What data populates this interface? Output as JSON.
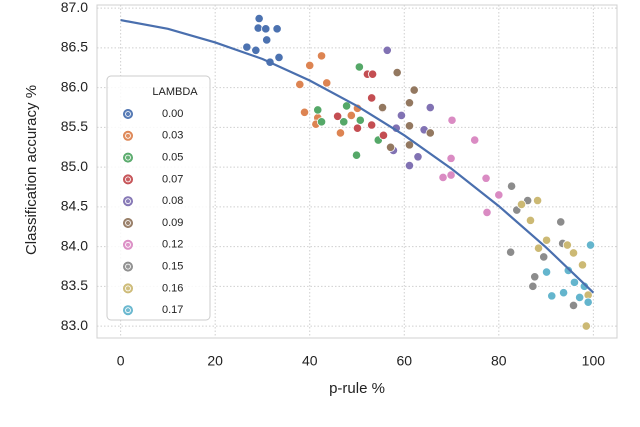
{
  "chart_data": {
    "type": "scatter",
    "xlabel": "p-rule %",
    "ylabel": "Classification accuracy %",
    "xlim": [
      -5,
      105
    ],
    "ylim": [
      82.85,
      87.04
    ],
    "xticks": [
      0,
      20,
      40,
      60,
      80,
      100
    ],
    "yticks": [
      {
        "value": 83,
        "label": "83.0"
      },
      83.5,
      {
        "value": 84,
        "label": "84.0"
      },
      84.5,
      {
        "value": 85,
        "label": "85.0"
      },
      85.5,
      {
        "value": 86,
        "label": "86.0"
      },
      86.5,
      {
        "value": 87,
        "label": "87.0"
      }
    ],
    "grid": true,
    "legend_title": "LAMBDA",
    "legend_position": "lower left",
    "series": [
      {
        "name": "0.00",
        "color": "#4c72b0",
        "x": [
          29.3,
          29.1,
          30.7,
          33.1,
          30.9,
          28.6,
          26.7,
          33.5,
          31.6
        ],
        "values": [
          86.87,
          86.75,
          86.74,
          86.74,
          86.6,
          86.47,
          86.51,
          86.38,
          86.32
        ]
      },
      {
        "name": "0.03",
        "color": "#dd8452",
        "x": [
          42.5,
          40,
          37.9,
          43.6,
          38.9,
          41.7,
          41.3,
          46.5,
          50.1,
          48.8
        ],
        "values": [
          86.4,
          86.28,
          86.04,
          86.06,
          85.69,
          85.62,
          85.54,
          85.43,
          85.74,
          85.65
        ]
      },
      {
        "name": "0.05",
        "color": "#55a868",
        "x": [
          50.5,
          47.8,
          41.7,
          47.2,
          42.5,
          50.7,
          54.5,
          49.9
        ],
        "values": [
          86.26,
          85.77,
          85.72,
          85.57,
          85.57,
          85.59,
          85.34,
          85.15
        ]
      },
      {
        "name": "0.07",
        "color": "#c44e52",
        "x": [
          52.2,
          53.3,
          53.1,
          45.9,
          53.1,
          55.4,
          50.1,
          55.6
        ],
        "values": [
          86.17,
          86.17,
          85.87,
          85.64,
          85.53,
          85.74,
          85.49,
          85.4
        ]
      },
      {
        "name": "0.08",
        "color": "#8172b3",
        "x": [
          56.4,
          59.4,
          65.5,
          57.7,
          61.1,
          62.9,
          64.2,
          58.3
        ],
        "values": [
          86.47,
          85.65,
          85.75,
          85.21,
          85.02,
          85.13,
          85.47,
          85.49
        ]
      },
      {
        "name": "0.09",
        "color": "#937860",
        "x": [
          58.5,
          62.1,
          61.1,
          55.4,
          61.1,
          65.5,
          57.1,
          61.1
        ],
        "values": [
          86.19,
          85.97,
          85.81,
          85.75,
          85.52,
          85.43,
          85.25,
          85.28
        ]
      },
      {
        "name": "0.12",
        "color": "#da8bc3",
        "x": [
          70.1,
          74.9,
          68.2,
          69.9,
          69.9,
          77.3,
          77.5,
          80
        ],
        "values": [
          85.59,
          85.34,
          84.87,
          84.9,
          85.11,
          84.86,
          84.43,
          84.65
        ]
      },
      {
        "name": "0.15",
        "color": "#8c8c8c",
        "x": [
          82.7,
          83.8,
          86.1,
          82.5,
          87.6,
          89.5,
          93.1,
          93.5,
          95.8,
          87.2
        ],
        "values": [
          84.76,
          84.46,
          84.58,
          83.93,
          83.62,
          83.87,
          84.31,
          84.04,
          83.26,
          83.5
        ]
      },
      {
        "name": "0.16",
        "color": "#ccb974",
        "x": [
          88.2,
          86.7,
          84.8,
          90.1,
          88.4,
          94.5,
          95.8,
          97.7,
          98.9,
          98.5
        ],
        "values": [
          84.58,
          84.33,
          84.53,
          84.08,
          83.98,
          84.02,
          83.92,
          83.77,
          83.39,
          83
        ]
      },
      {
        "name": "0.17",
        "color": "#64b5cd",
        "x": [
          99.4,
          90.1,
          94.7,
          96,
          91.2,
          93.7,
          97.1,
          98.9,
          98.1
        ],
        "values": [
          84.02,
          83.68,
          83.7,
          83.55,
          83.38,
          83.42,
          83.36,
          83.3,
          83.5
        ]
      }
    ],
    "fit": {
      "color": "#4a6fae",
      "x": [
        0,
        10,
        20,
        30,
        40,
        50,
        60,
        70,
        80,
        90,
        100
      ],
      "values": [
        86.85,
        86.74,
        86.57,
        86.36,
        86.09,
        85.77,
        85.4,
        84.98,
        84.51,
        83.99,
        83.42
      ]
    }
  }
}
